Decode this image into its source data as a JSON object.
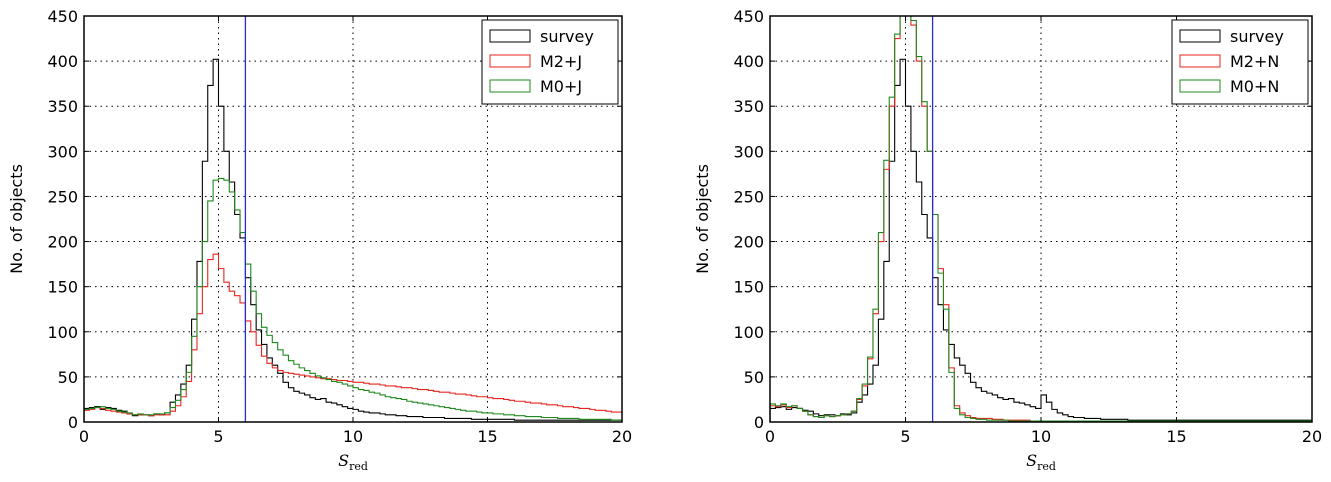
{
  "chart_data": [
    {
      "type": "step-histogram",
      "panel": "left",
      "xlabel_main": "S",
      "xlabel_sub": "red",
      "ylabel": "No. of objects",
      "xlim": [
        0,
        20
      ],
      "ylim": [
        0,
        450
      ],
      "xticks": [
        0,
        5,
        10,
        15,
        20
      ],
      "yticks": [
        0,
        50,
        100,
        150,
        200,
        250,
        300,
        350,
        400,
        450
      ],
      "grid": true,
      "legend_position": "top-right",
      "bin_width": 0.2,
      "vline": {
        "x": 6.0,
        "color": "#2b2bd6"
      },
      "series": [
        {
          "name": "survey",
          "color": "#000000",
          "values": [
            15,
            16,
            17,
            14,
            16,
            15,
            13,
            12,
            9,
            7,
            8,
            8,
            7,
            9,
            8,
            10,
            22,
            30,
            42,
            63,
            114,
            178,
            289,
            373,
            402,
            350,
            300,
            266,
            230,
            204,
            160,
            130,
            102,
            86,
            71,
            63,
            54,
            44,
            38,
            34,
            32,
            30,
            27,
            25,
            26,
            22,
            21,
            19,
            17,
            15,
            14,
            12,
            11,
            10,
            10,
            9,
            8,
            8,
            7,
            7,
            6,
            6,
            6,
            5,
            5,
            5,
            5,
            4,
            4,
            4,
            4,
            4,
            3,
            3,
            3,
            3,
            3,
            3,
            3,
            3,
            2,
            2,
            2,
            2,
            2,
            2,
            2,
            2,
            2,
            2,
            2,
            2,
            2,
            2,
            2,
            2,
            2,
            2,
            2,
            2
          ]
        },
        {
          "name": "M2+J",
          "color": "#e8241e",
          "values": [
            13,
            14,
            16,
            15,
            13,
            12,
            11,
            10,
            9,
            8,
            8,
            8,
            7,
            8,
            8,
            8,
            12,
            18,
            28,
            45,
            80,
            120,
            150,
            180,
            186,
            170,
            155,
            145,
            140,
            132,
            112,
            100,
            85,
            73,
            65,
            60,
            57,
            55,
            54,
            53,
            52,
            51,
            50,
            49,
            48,
            48,
            47,
            46,
            46,
            45,
            44,
            44,
            43,
            42,
            42,
            41,
            40,
            40,
            39,
            38,
            38,
            37,
            36,
            36,
            35,
            34,
            33,
            33,
            32,
            31,
            31,
            30,
            29,
            28,
            28,
            27,
            26,
            26,
            25,
            24,
            23,
            23,
            22,
            21,
            21,
            20,
            19,
            19,
            18,
            17,
            17,
            16,
            15,
            15,
            14,
            13,
            13,
            12,
            11,
            11
          ]
        },
        {
          "name": "M0+J",
          "color": "#1e8a1e",
          "values": [
            14,
            15,
            16,
            17,
            15,
            14,
            12,
            11,
            10,
            8,
            9,
            8,
            8,
            9,
            9,
            10,
            16,
            24,
            36,
            55,
            95,
            150,
            200,
            245,
            268,
            270,
            268,
            255,
            235,
            210,
            175,
            145,
            120,
            105,
            96,
            88,
            80,
            74,
            68,
            64,
            60,
            57,
            54,
            51,
            49,
            47,
            45,
            44,
            42,
            40,
            38,
            36,
            35,
            33,
            32,
            30,
            28,
            27,
            26,
            25,
            23,
            22,
            21,
            20,
            19,
            18,
            17,
            16,
            15,
            14,
            13,
            12,
            12,
            11,
            10,
            10,
            9,
            9,
            8,
            8,
            7,
            7,
            6,
            6,
            6,
            5,
            5,
            5,
            4,
            4,
            4,
            4,
            3,
            3,
            3,
            3,
            3,
            3,
            2,
            2
          ]
        }
      ]
    },
    {
      "type": "step-histogram",
      "panel": "right",
      "xlabel_main": "S",
      "xlabel_sub": "red",
      "ylabel": "No. of objects",
      "xlim": [
        0,
        20
      ],
      "ylim": [
        0,
        450
      ],
      "xticks": [
        0,
        5,
        10,
        15,
        20
      ],
      "yticks": [
        0,
        50,
        100,
        150,
        200,
        250,
        300,
        350,
        400,
        450
      ],
      "grid": true,
      "legend_position": "top-right",
      "bin_width": 0.2,
      "vline": {
        "x": 6.0,
        "color": "#2b2bd6"
      },
      "series": [
        {
          "name": "survey",
          "color": "#000000",
          "values": [
            15,
            16,
            17,
            14,
            16,
            15,
            13,
            12,
            9,
            7,
            8,
            8,
            7,
            9,
            8,
            10,
            22,
            30,
            42,
            63,
            114,
            178,
            289,
            373,
            402,
            350,
            300,
            266,
            230,
            204,
            160,
            130,
            102,
            86,
            71,
            63,
            54,
            44,
            38,
            34,
            32,
            30,
            27,
            25,
            26,
            22,
            21,
            19,
            17,
            15,
            30,
            22,
            14,
            10,
            8,
            6,
            5,
            5,
            4,
            4,
            4,
            3,
            3,
            3,
            3,
            3,
            2,
            2,
            2,
            2,
            2,
            2,
            2,
            2,
            2,
            2,
            2,
            2,
            2,
            2,
            2,
            2,
            2,
            2,
            2,
            2,
            2,
            2,
            2,
            2,
            2,
            2,
            2,
            2,
            2,
            2,
            2,
            2,
            2,
            2
          ]
        },
        {
          "name": "M2+N",
          "color": "#e8241e",
          "values": [
            18,
            17,
            19,
            16,
            18,
            15,
            12,
            8,
            6,
            5,
            7,
            6,
            7,
            8,
            9,
            12,
            25,
            40,
            70,
            120,
            200,
            280,
            350,
            425,
            450,
            460,
            440,
            400,
            350,
            300,
            230,
            170,
            130,
            60,
            18,
            10,
            7,
            5,
            4,
            4,
            4,
            3,
            3,
            2,
            2,
            2,
            2,
            2,
            1,
            1,
            1,
            1,
            1,
            1,
            1,
            1,
            1,
            1,
            1,
            1,
            1,
            1,
            1,
            1,
            1,
            1,
            1,
            1,
            1,
            1,
            1,
            1,
            1,
            1,
            1,
            1,
            1,
            1,
            1,
            1,
            1,
            1,
            1,
            1,
            1,
            1,
            1,
            1,
            1,
            1,
            1,
            1,
            1,
            1,
            1,
            1,
            1,
            1,
            1,
            1
          ]
        },
        {
          "name": "M0+N",
          "color": "#1e8a1e",
          "values": [
            20,
            18,
            20,
            17,
            18,
            15,
            12,
            8,
            6,
            5,
            7,
            6,
            7,
            8,
            9,
            12,
            26,
            42,
            72,
            125,
            210,
            290,
            360,
            430,
            455,
            465,
            445,
            405,
            355,
            300,
            230,
            165,
            125,
            55,
            15,
            8,
            5,
            4,
            3,
            3,
            2,
            2,
            2,
            2,
            1,
            1,
            1,
            1,
            1,
            1,
            1,
            1,
            1,
            1,
            1,
            1,
            1,
            1,
            1,
            1,
            1,
            1,
            1,
            1,
            1,
            1,
            1,
            1,
            1,
            1,
            1,
            1,
            1,
            1,
            1,
            1,
            1,
            1,
            1,
            1,
            1,
            1,
            1,
            1,
            1,
            1,
            1,
            1,
            1,
            1,
            1,
            1,
            1,
            1,
            1,
            1,
            1,
            1,
            1,
            1
          ]
        }
      ]
    }
  ]
}
